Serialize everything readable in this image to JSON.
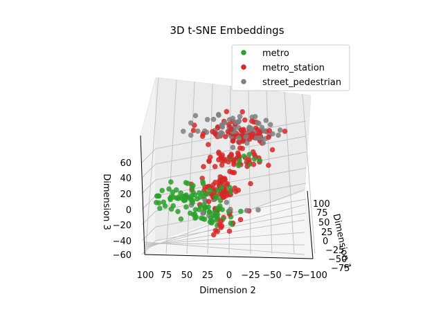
{
  "chart_data": {
    "type": "scatter",
    "projection": "3d",
    "title": "3D t-SNE Embeddings",
    "xlabel": "Dimension 1",
    "ylabel": "Dimension 2",
    "zlabel": "Dimension 3",
    "xlim": [
      -110,
      110
    ],
    "ylim": [
      -110,
      110
    ],
    "zlim": [
      -62,
      78
    ],
    "x_ticks": [
      "100",
      "75",
      "50",
      "25",
      "0",
      "−25",
      "−50",
      "−75",
      "−100"
    ],
    "y_ticks": [
      "100",
      "75",
      "50",
      "25",
      "0",
      "−25",
      "−50",
      "−75",
      "−100"
    ],
    "z_ticks": [
      "60",
      "40",
      "20",
      "0",
      "−20",
      "−40",
      "−60"
    ],
    "grid": true,
    "legend_position": "top-right",
    "series": [
      {
        "name": "metro",
        "color": "#2ca02c"
      },
      {
        "name": "metro_station",
        "color": "#d62728"
      },
      {
        "name": "street_pedestrian",
        "color": "#7f7f7f"
      }
    ]
  }
}
